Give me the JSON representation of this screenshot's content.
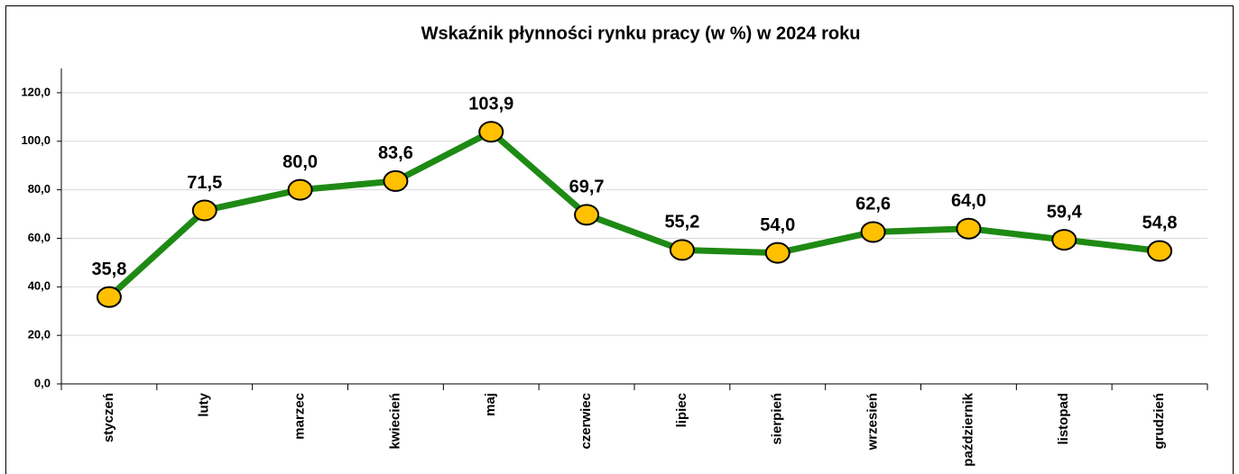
{
  "chart_data": {
    "type": "line",
    "title": "Wskaźnik płynności rynku pracy  (w %) w 2024 roku",
    "categories": [
      "styczeń",
      "luty",
      "marzec",
      "kwiecień",
      "maj",
      "czerwiec",
      "lipiec",
      "sierpień",
      "wrzesień",
      "październik",
      "listopad",
      "grudzień"
    ],
    "series": [
      {
        "name": "Wskaźnik płynności",
        "color": "#1e8a14",
        "marker_color": "#ffc000",
        "values": [
          35.8,
          71.5,
          80.0,
          83.6,
          103.9,
          69.7,
          55.2,
          54.0,
          62.6,
          64.0,
          59.4,
          54.8
        ],
        "value_labels": [
          "35,8",
          "71,5",
          "80,0",
          "83,6",
          "103,9",
          "69,7",
          "55,2",
          "54,0",
          "62,6",
          "64,0",
          "59,4",
          "54,8"
        ]
      }
    ],
    "ylim": [
      0,
      130
    ],
    "yticks": [
      {
        "value": 0,
        "label": "0,0"
      },
      {
        "value": 20,
        "label": "20,0"
      },
      {
        "value": 40,
        "label": "40,0"
      },
      {
        "value": 60,
        "label": "60,0"
      },
      {
        "value": 80,
        "label": "80,0"
      },
      {
        "value": 100,
        "label": "100,0"
      },
      {
        "value": 120,
        "label": "120,0"
      }
    ],
    "grid": true
  }
}
